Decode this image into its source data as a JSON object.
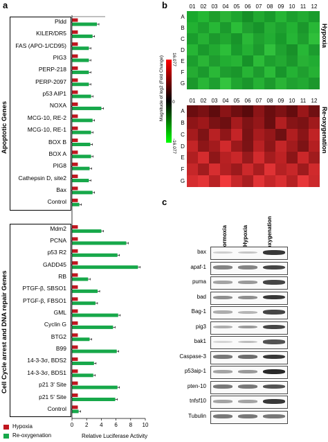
{
  "panels": {
    "a": "a",
    "b": "b",
    "c": "c"
  },
  "panel_a": {
    "group_titles": [
      "Apoptotic Genes",
      "Cell Cycle arrest and DNA repair Genes"
    ],
    "legend": {
      "hypoxia": {
        "label": "Hypoxia",
        "color": "#c0161f"
      },
      "reoxygenation": {
        "label": "Re-oxygenation",
        "color": "#17a84a"
      }
    },
    "xlabel": "Relative Luciferase Activity",
    "xticks": [
      "0",
      "2",
      "4",
      "6",
      "8",
      "10"
    ]
  },
  "chart_data": {
    "type": "bar",
    "orientation": "horizontal",
    "xlim": [
      0,
      10
    ],
    "categories": [
      "Pldd",
      "KILER/DR5",
      "FAS (APO-1/CD95)",
      "PIG3",
      "PERP-218",
      "PERP-2097",
      "p53 AIP1",
      "NOXA",
      "MCG-10, RE-2",
      "MCG-10, RE-1",
      "BOX B",
      "BOX A",
      "PIG8",
      "Cathepsin D, site2",
      "Bax",
      "Control",
      "Mdm2",
      "PCNA",
      "p53 R2",
      "GADD45",
      "RB",
      "PTGF-β, SBSO1",
      "PTGF-β, FBSO1",
      "GML",
      "Cyclin G",
      "BTG2",
      "B99",
      "14-3-3σ, BDS2",
      "14-3-3σ, BDS1",
      "p21 3' Site",
      "p21 5' Site",
      "Control"
    ],
    "groups": [
      {
        "name": "Apoptotic Genes",
        "start": 0,
        "end": 15
      },
      {
        "name": "Cell Cycle arrest and DNA repair Genes",
        "start": 16,
        "end": 31
      }
    ],
    "series": [
      {
        "name": "Hypoxia",
        "color": "#c0161f",
        "values": [
          0.8,
          0.8,
          0.8,
          0.8,
          0.8,
          0.8,
          0.8,
          0.8,
          0.8,
          0.8,
          0.8,
          0.8,
          0.8,
          0.8,
          0.8,
          0.8,
          0.8,
          0.8,
          0.8,
          0.8,
          0.8,
          0.8,
          0.8,
          0.8,
          0.8,
          0.8,
          0.8,
          0.8,
          0.8,
          0.8,
          0.8,
          0.8
        ]
      },
      {
        "name": "Re-oxygenation",
        "color": "#17a84a",
        "values": [
          3.4,
          2.8,
          2.3,
          2.3,
          2.3,
          2.3,
          2.6,
          4.0,
          2.8,
          2.6,
          2.5,
          2.6,
          2.4,
          2.3,
          2.8,
          1.0,
          4.0,
          7.4,
          6.2,
          9.0,
          2.2,
          3.5,
          3.2,
          6.3,
          5.6,
          2.4,
          6.1,
          3.0,
          2.9,
          6.2,
          5.9,
          0.9
        ]
      }
    ]
  },
  "panel_b": {
    "columns": [
      "01",
      "02",
      "03",
      "04",
      "05",
      "06",
      "07",
      "08",
      "09",
      "10",
      "11",
      "12"
    ],
    "rows": [
      "A",
      "B",
      "C",
      "D",
      "E",
      "F",
      "G"
    ],
    "conditions": [
      "Hypoxia",
      "Re-oxygenation"
    ],
    "colorbar": {
      "title": "Magnitude of log2 (Fold Change)",
      "max": "16.077",
      "zero": "0",
      "min": "-16.077"
    },
    "hypoxia_colors": [
      [
        "#19a82d",
        "#24b733",
        "#1f9e2c",
        "#2bb336",
        "#1ea52f",
        "#168f27",
        "#21a930",
        "#199a2b",
        "#26b535",
        "#1c9f2e",
        "#22ab32",
        "#1a9c2c"
      ],
      [
        "#22b132",
        "#1d9f2e",
        "#27b836",
        "#1b9a2d",
        "#2bbd38",
        "#209f30",
        "#17932a",
        "#25ae34",
        "#1da02f",
        "#23b233",
        "#1b972c",
        "#28b736"
      ],
      [
        "#1a9d2d",
        "#26b134",
        "#1c992d",
        "#21a730",
        "#18942a",
        "#2ab837",
        "#1fa12f",
        "#22ad33",
        "#189a2b",
        "#25b535",
        "#1e9e2e",
        "#2fbf3a"
      ],
      [
        "#26b535",
        "#1a992c",
        "#22a931",
        "#2cbe39",
        "#199b2c",
        "#24b033",
        "#1c9a2d",
        "#30c03c",
        "#1fa230",
        "#189029",
        "#27b736",
        "#1c9c2e"
      ],
      [
        "#1c9e2e",
        "#2ab536",
        "#1f9c2f",
        "#22ae32",
        "#27b435",
        "#179229",
        "#2cbb38",
        "#1d9f2e",
        "#23a932",
        "#1b972c",
        "#28b135",
        "#21ac32"
      ],
      [
        "#25ac33",
        "#1b992d",
        "#2ab837",
        "#1e9d2f",
        "#1a962b",
        "#27b435",
        "#1d9b2e",
        "#2bbb38",
        "#18952b",
        "#24b234",
        "#1f9f2f",
        "#26b134"
      ],
      [
        "#1b982c",
        "#28b636",
        "#1e9f30",
        "#33c43e",
        "#20a530",
        "#1a962c",
        "#25b134",
        "#1c9a2d",
        "#29b436",
        "#1fa130",
        "#22a932",
        "#1b972c"
      ]
    ],
    "reoxy_colors": [
      [
        "#6b0d0f",
        "#7a1113",
        "#5e0b0d",
        "#8a1416",
        "#6f0e10",
        "#5a0a0c",
        "#8c1517",
        "#6a0d0f",
        "#7e1214",
        "#650c0e",
        "#9a1719",
        "#701012"
      ],
      [
        "#8e1517",
        "#9e181a",
        "#7a1214",
        "#6d0f11",
        "#a61b1d",
        "#7f1315",
        "#941719",
        "#6a0e10",
        "#b21f21",
        "#861416",
        "#7b1214",
        "#a01a1c"
      ],
      [
        "#a51b1d",
        "#7e1315",
        "#b82123",
        "#8f1618",
        "#c42427",
        "#7a1214",
        "#a81c1e",
        "#941719",
        "#6f1012",
        "#b01e20",
        "#8a1517",
        "#c02325"
      ],
      [
        "#c32527",
        "#8d1618",
        "#a31b1d",
        "#d12a2c",
        "#9b191b",
        "#7b1315",
        "#b92123",
        "#8e1618",
        "#c42628",
        "#a21b1d",
        "#7d1315",
        "#b41f21"
      ],
      [
        "#b01f21",
        "#d42c2e",
        "#8e1618",
        "#b72123",
        "#c92729",
        "#981a1c",
        "#d22b2d",
        "#a41c1e",
        "#bd2224",
        "#8b1517",
        "#ca2729",
        "#a01b1d"
      ],
      [
        "#c62729",
        "#a21c1e",
        "#d62e30",
        "#b32022",
        "#9c1a1c",
        "#cc292b",
        "#a91d1f",
        "#df3234",
        "#b52123",
        "#c72729",
        "#9e1b1d",
        "#d02a2c"
      ],
      [
        "#d52d2f",
        "#e33436",
        "#b82224",
        "#f0393b",
        "#c62729",
        "#a91e20",
        "#e13335",
        "#c42628",
        "#d92f31",
        "#b52123",
        "#e73739",
        "#cb292b"
      ]
    ]
  },
  "panel_c": {
    "columns": [
      "Normoxia",
      "Hypoxia",
      "Re-oxygenation"
    ],
    "proteins": [
      {
        "label": "bax",
        "intensity": [
          0.25,
          0.3,
          0.95
        ]
      },
      {
        "label": "apaf-1",
        "intensity": [
          0.65,
          0.65,
          0.9
        ]
      },
      {
        "label": "puma",
        "intensity": [
          0.5,
          0.55,
          0.9
        ]
      },
      {
        "label": "bad",
        "intensity": [
          0.6,
          0.6,
          0.95
        ]
      },
      {
        "label": "Bag-1",
        "intensity": [
          0.45,
          0.4,
          0.9
        ]
      },
      {
        "label": "pig3",
        "intensity": [
          0.45,
          0.55,
          0.9
        ]
      },
      {
        "label": "bak1",
        "intensity": [
          0.2,
          0.35,
          0.85
        ]
      },
      {
        "label": "Caspase-3",
        "intensity": [
          0.7,
          0.75,
          0.95
        ]
      },
      {
        "label": "p53aip-1",
        "intensity": [
          0.5,
          0.55,
          1.0
        ]
      },
      {
        "label": "pten-10",
        "intensity": [
          0.7,
          0.7,
          0.85
        ]
      },
      {
        "label": "tnfsf10",
        "intensity": [
          0.5,
          0.5,
          0.95
        ]
      },
      {
        "label": "Tubulin",
        "intensity": [
          0.7,
          0.7,
          0.7
        ]
      }
    ]
  }
}
